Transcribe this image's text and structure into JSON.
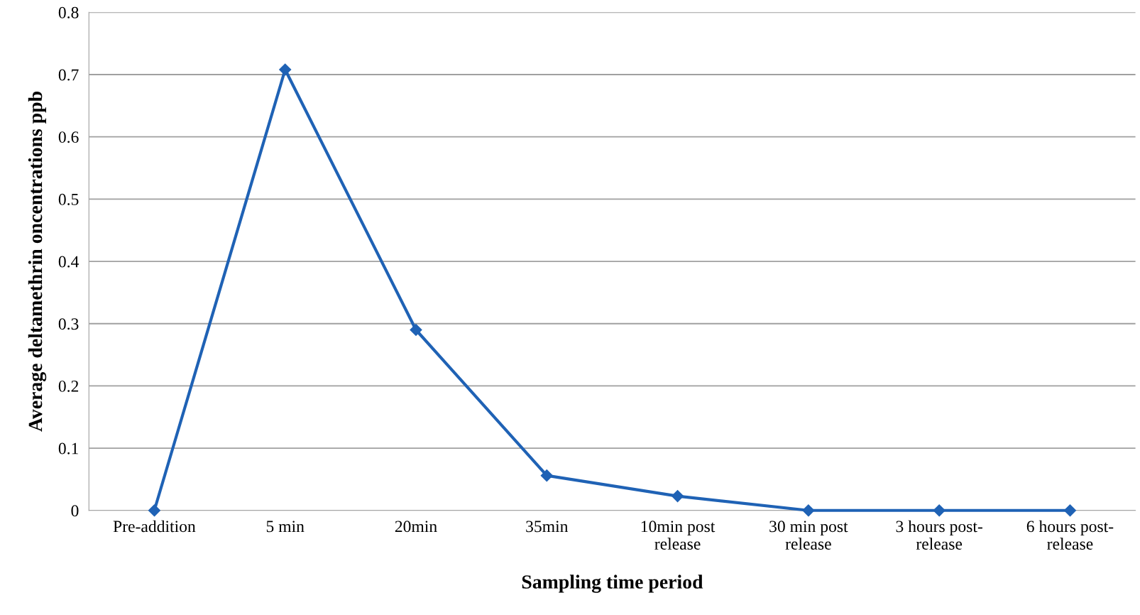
{
  "chart_data": {
    "type": "line",
    "xlabel": "Sampling time period",
    "ylabel": "Average deltamethrin oncentrations ppb",
    "categories": [
      "Pre-addition",
      "5 min",
      "20min",
      "35min",
      "10min post\nrelease",
      "30 min post\nrelease",
      "3 hours post-\nrelease",
      "6 hours post-\nrelease"
    ],
    "series": [
      {
        "color": "#1f62b5",
        "values": [
          0,
          0.708,
          0.29,
          0.056,
          0.023,
          0,
          0,
          0
        ]
      }
    ],
    "ylim": [
      0,
      0.8
    ],
    "yticks": [
      0,
      0.1,
      0.2,
      0.3,
      0.4,
      0.5,
      0.6,
      0.7,
      0.8
    ],
    "grid": "y",
    "marker": "diamond",
    "line_style": "solid"
  }
}
